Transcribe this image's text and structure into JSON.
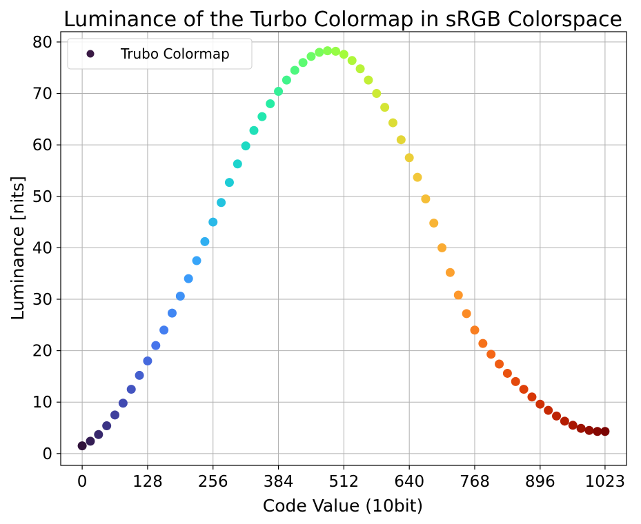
{
  "chart_data": {
    "type": "scatter",
    "title": "Luminance of the Turbo Colormap in sRGB Colorspace",
    "xlabel": "Code Value (10bit)",
    "ylabel": "Luminance [nits]",
    "xlim": [
      -42,
      1065
    ],
    "ylim": [
      -2.3,
      82
    ],
    "xticks": [
      0,
      128,
      256,
      384,
      512,
      640,
      768,
      896,
      1023
    ],
    "yticks": [
      0,
      10,
      20,
      30,
      40,
      50,
      60,
      70,
      80
    ],
    "grid": true,
    "legend_position": "top-left",
    "series": [
      {
        "name": "Trubo Colormap",
        "legend_marker_color": "#3a1a44",
        "x": [
          0,
          16,
          32,
          48,
          64,
          80,
          96,
          112,
          128,
          144,
          160,
          176,
          192,
          208,
          224,
          240,
          256,
          272,
          288,
          304,
          320,
          336,
          352,
          368,
          384,
          400,
          416,
          432,
          448,
          464,
          480,
          496,
          512,
          528,
          544,
          560,
          576,
          592,
          608,
          624,
          640,
          656,
          672,
          688,
          704,
          720,
          736,
          752,
          768,
          784,
          800,
          816,
          832,
          848,
          864,
          880,
          896,
          912,
          928,
          944,
          960,
          976,
          992,
          1008,
          1023
        ],
        "y": [
          1.5,
          2.4,
          3.7,
          5.4,
          7.5,
          9.8,
          12.5,
          15.2,
          18.0,
          21.0,
          24.0,
          27.3,
          30.6,
          34.0,
          37.5,
          41.2,
          45.0,
          48.8,
          52.7,
          56.3,
          59.8,
          62.8,
          65.5,
          68.0,
          70.4,
          72.6,
          74.5,
          76.0,
          77.2,
          78.0,
          78.3,
          78.2,
          77.6,
          76.4,
          74.8,
          72.6,
          70.0,
          67.3,
          64.3,
          61.0,
          57.5,
          53.7,
          49.5,
          44.8,
          40.0,
          35.2,
          30.8,
          27.2,
          24.0,
          21.4,
          19.3,
          17.4,
          15.6,
          14.0,
          12.5,
          11.0,
          9.6,
          8.4,
          7.3,
          6.3,
          5.5,
          4.9,
          4.5,
          4.3,
          4.3
        ]
      }
    ],
    "colormap_stops": [
      "#30123b",
      "#4145ab",
      "#4675ed",
      "#39a2fc",
      "#1bcfd4",
      "#24eca6",
      "#61fc6c",
      "#a4fc3b",
      "#d1e834",
      "#f3c63a",
      "#fe9b2d",
      "#f36315",
      "#d93806",
      "#b11901",
      "#7a0402"
    ]
  }
}
